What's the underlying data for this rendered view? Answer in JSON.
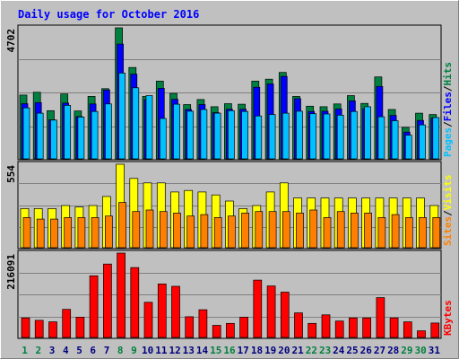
{
  "chart_data": {
    "type": "bar",
    "title": "Daily usage for October 2016",
    "categories": [
      "1",
      "2",
      "3",
      "4",
      "5",
      "6",
      "7",
      "8",
      "9",
      "10",
      "11",
      "12",
      "13",
      "14",
      "15",
      "16",
      "17",
      "18",
      "19",
      "20",
      "21",
      "22",
      "23",
      "24",
      "25",
      "26",
      "27",
      "28",
      "29",
      "30",
      "31"
    ],
    "weekend_days": [
      "1",
      "2",
      "8",
      "9",
      "15",
      "16",
      "22",
      "23",
      "29",
      "30"
    ],
    "colors": {
      "title": "#0000ff",
      "background": "#c0c0c0",
      "hits": "#008040",
      "files": "#0000ff",
      "pages": "#00c0ff",
      "visits": "#ffff00",
      "sites": "#ff8000",
      "kbytes": "#ff0000",
      "weekday_label": "#000080",
      "weekend_label": "#008040"
    },
    "panels": [
      {
        "id": "top",
        "max_label": "4702",
        "max_value": 4702,
        "legend": [
          {
            "name": "Pages",
            "color": "#00c0ff"
          },
          {
            "name": "Files",
            "color": "#0000ff"
          },
          {
            "name": "Hits",
            "color": "#008040"
          }
        ],
        "series": [
          {
            "name": "Hits",
            "values": [
              2290,
              2390,
              1730,
              2330,
              1720,
              2240,
              2520,
              4702,
              3280,
              2240,
              2790,
              2350,
              1950,
              2130,
              1870,
              1980,
              1960,
              2790,
              2860,
              3100,
              2240,
              1890,
              1870,
              1970,
              2270,
              1990,
              2940,
              1770,
              1130,
              1640,
              1590
            ]
          },
          {
            "name": "Files",
            "values": [
              1980,
              2020,
              1400,
              2000,
              1520,
              1970,
              2470,
              4120,
              3040,
              2130,
              2530,
              2140,
              1770,
              1950,
              1660,
              1780,
              1780,
              2570,
              2690,
              2960,
              2160,
              1700,
              1710,
              1790,
              2080,
              1800,
              2600,
              1560,
              960,
              1380,
              1460
            ]
          },
          {
            "name": "Pages",
            "values": [
              1830,
              1640,
              1390,
              1920,
              1500,
              1700,
              1970,
              3080,
              2550,
              2270,
              1450,
              1960,
              1710,
              1770,
              1640,
              1730,
              1700,
              1540,
              1590,
              1640,
              1710,
              1620,
              1610,
              1570,
              1700,
              1870,
              1510,
              1370,
              850,
              1220,
              1480
            ]
          }
        ]
      },
      {
        "id": "middle",
        "max_label": "554",
        "max_value": 554,
        "legend": [
          {
            "name": "Sites",
            "color": "#ff8000"
          },
          {
            "name": "Visits",
            "color": "#ffff00"
          }
        ],
        "series": [
          {
            "name": "Visits",
            "values": [
              260,
              260,
              260,
              280,
              270,
              280,
              340,
              554,
              460,
              430,
              430,
              370,
              380,
              370,
              350,
              310,
              260,
              280,
              370,
              430,
              330,
              330,
              330,
              330,
              330,
              330,
              330,
              330,
              330,
              330,
              280
            ]
          },
          {
            "name": "Sites",
            "values": [
              200,
              190,
              190,
              200,
              200,
              200,
              210,
              300,
              240,
              250,
              240,
              230,
              210,
              220,
              200,
              210,
              230,
              240,
              240,
              240,
              230,
              250,
              200,
              240,
              230,
              230,
              200,
              220,
              200,
              200,
              200
            ]
          }
        ]
      },
      {
        "id": "bottom",
        "max_label": "216091",
        "max_value": 216091,
        "legend": [
          {
            "name": "KBytes",
            "color": "#ff0000"
          }
        ],
        "series": [
          {
            "name": "KBytes",
            "values": [
              50000,
              44000,
              40000,
              72000,
              52000,
              158000,
              188000,
              216091,
              179000,
              90000,
              137000,
              131000,
              53000,
              71000,
              31000,
              36000,
              52000,
              147000,
              132000,
              116000,
              63000,
              36000,
              58000,
              42000,
              50000,
              50000,
              102000,
              50000,
              40000,
              17000,
              37000
            ]
          }
        ]
      }
    ]
  }
}
